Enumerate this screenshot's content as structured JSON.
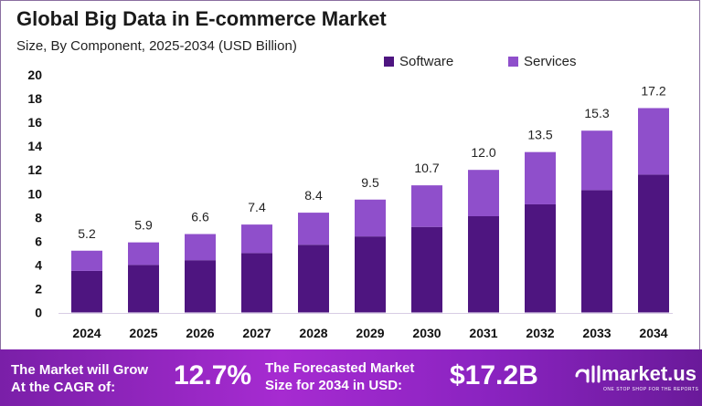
{
  "chart_data": {
    "type": "bar",
    "stacked": true,
    "title": "Global Big Data in E-commerce Market",
    "subtitle": "Size, By Component, 2025-2034 (USD Billion)",
    "categories": [
      "2024",
      "2025",
      "2026",
      "2027",
      "2028",
      "2029",
      "2030",
      "2031",
      "2032",
      "2033",
      "2034"
    ],
    "series": [
      {
        "name": "Software",
        "color": "#4e1580",
        "values": [
          3.5,
          4.0,
          4.4,
          5.0,
          5.7,
          6.4,
          7.2,
          8.1,
          9.1,
          10.3,
          11.6
        ]
      },
      {
        "name": "Services",
        "color": "#8f4fcb",
        "values": [
          1.7,
          1.9,
          2.2,
          2.4,
          2.7,
          3.1,
          3.5,
          3.9,
          4.4,
          5.0,
          5.6
        ]
      }
    ],
    "totals": [
      "5.2",
      "5.9",
      "6.6",
      "7.4",
      "8.4",
      "9.5",
      "10.7",
      "12.0",
      "13.5",
      "15.3",
      "17.2"
    ],
    "yticks": [
      "0",
      "2",
      "4",
      "6",
      "8",
      "10",
      "12",
      "14",
      "16",
      "18",
      "20"
    ],
    "ylim": [
      0,
      20
    ],
    "grid": false,
    "legend": "top-right"
  },
  "footer": {
    "cagr_label_1": "The Market will Grow",
    "cagr_label_2": "At the CAGR of:",
    "cagr_value": "12.7%",
    "forecast_label_1": "The Forecasted Market",
    "forecast_label_2": "Size for 2034 in USD:",
    "forecast_value": "$17.2B",
    "brand": "market.us",
    "brand_tagline": "ONE STOP SHOP FOR THE REPORTS"
  }
}
